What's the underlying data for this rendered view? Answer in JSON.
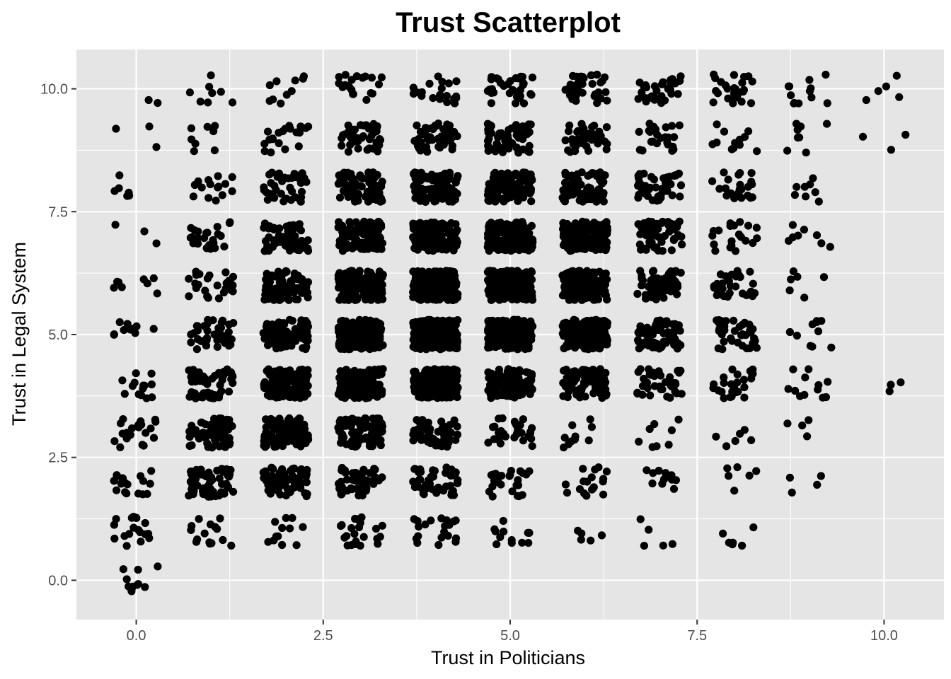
{
  "chart_data": {
    "type": "scatter",
    "title": "Trust Scatterplot",
    "xlabel": "Trust in Politicians",
    "ylabel": "Trust in Legal System",
    "xlim": [
      -0.8,
      10.8
    ],
    "ylim": [
      -0.8,
      10.8
    ],
    "x_ticks": [
      {
        "value": 0,
        "label": "0.0"
      },
      {
        "value": 2.5,
        "label": "2.5"
      },
      {
        "value": 5,
        "label": "5.0"
      },
      {
        "value": 7.5,
        "label": "7.5"
      },
      {
        "value": 10,
        "label": "10.0"
      }
    ],
    "y_ticks": [
      {
        "value": 0,
        "label": "0.0"
      },
      {
        "value": 2.5,
        "label": "2.5"
      },
      {
        "value": 5,
        "label": "5.0"
      },
      {
        "value": 7.5,
        "label": "7.5"
      },
      {
        "value": 10,
        "label": "10.0"
      }
    ],
    "grid": true,
    "point_color": "#000000",
    "panel_background": "#e5e5e5",
    "grid_color": "#ffffff",
    "jitter": 0.3,
    "points_per_cell": [
      [
        10,
        0,
        0,
        0,
        0,
        0,
        0,
        0,
        0,
        0,
        0
      ],
      [
        18,
        15,
        12,
        22,
        20,
        12,
        5,
        5,
        6,
        0,
        0
      ],
      [
        18,
        55,
        70,
        60,
        48,
        25,
        18,
        12,
        6,
        4,
        0
      ],
      [
        22,
        70,
        110,
        90,
        60,
        30,
        10,
        8,
        6,
        4,
        0
      ],
      [
        14,
        60,
        120,
        140,
        150,
        120,
        80,
        40,
        25,
        12,
        3
      ],
      [
        10,
        40,
        100,
        180,
        220,
        220,
        180,
        70,
        40,
        10,
        0
      ],
      [
        8,
        25,
        70,
        170,
        210,
        240,
        150,
        60,
        30,
        6,
        0
      ],
      [
        3,
        28,
        60,
        130,
        150,
        150,
        140,
        60,
        20,
        8,
        0
      ],
      [
        6,
        15,
        40,
        90,
        110,
        100,
        85,
        45,
        25,
        8,
        0
      ],
      [
        3,
        8,
        20,
        40,
        55,
        55,
        40,
        25,
        12,
        8,
        3
      ],
      [
        2,
        8,
        10,
        20,
        20,
        35,
        35,
        30,
        25,
        12,
        5
      ]
    ]
  }
}
